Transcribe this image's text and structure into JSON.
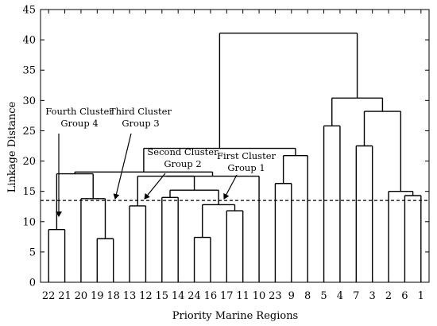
{
  "chart_data": {
    "type": "dendrogram",
    "xlabel": "Priority Marine Regions",
    "ylabel": "Linkage Distance",
    "ylim": [
      0,
      45
    ],
    "yticks": [
      0,
      5,
      10,
      15,
      20,
      25,
      30,
      35,
      40,
      45
    ],
    "leaves": [
      "22",
      "21",
      "20",
      "19",
      "18",
      "13",
      "12",
      "15",
      "14",
      "24",
      "16",
      "17",
      "11",
      "10",
      "23",
      "9",
      "8",
      "5",
      "4",
      "7",
      "3",
      "2",
      "6",
      "1"
    ],
    "merges": [
      {
        "children": [
          "22",
          "21"
        ],
        "height": 8.7
      },
      {
        "children": [
          "19",
          "18"
        ],
        "height": 7.2
      },
      {
        "children": [
          "20",
          "19+18"
        ],
        "height": 13.8
      },
      {
        "children": [
          "22+21",
          "20+19+18"
        ],
        "height": 17.9
      },
      {
        "children": [
          "13",
          "12"
        ],
        "height": 12.6
      },
      {
        "children": [
          "15",
          "14"
        ],
        "height": 14.0
      },
      {
        "children": [
          "24",
          "16"
        ],
        "height": 7.4
      },
      {
        "children": [
          "17",
          "11"
        ],
        "height": 11.8
      },
      {
        "children": [
          "24+16",
          "17+11"
        ],
        "height": 12.8
      },
      {
        "children": [
          "15+14",
          "24+16+17+11"
        ],
        "height": 15.2
      },
      {
        "children": [
          "13+12",
          "15+14+24+16+17+11"
        ],
        "height": 17.5
      },
      {
        "children": [
          "13..11",
          "10"
        ],
        "height": 17.5
      },
      {
        "children": [
          "22..18",
          "13..10"
        ],
        "height": 18.2
      },
      {
        "children": [
          "23",
          "9"
        ],
        "height": 16.3
      },
      {
        "children": [
          "23+9",
          "8"
        ],
        "height": 20.9
      },
      {
        "children": [
          "22..10",
          "23+9+8"
        ],
        "height": 22.1
      },
      {
        "children": [
          "7",
          "3"
        ],
        "height": 22.5
      },
      {
        "children": [
          "6",
          "1"
        ],
        "height": 14.3
      },
      {
        "children": [
          "2",
          "6+1"
        ],
        "height": 15.0
      },
      {
        "children": [
          "7+3",
          "2+6+1"
        ],
        "height": 28.2
      },
      {
        "children": [
          "5",
          "4"
        ],
        "height": 25.8
      },
      {
        "children": [
          "5+4",
          "7+3+2+6+1"
        ],
        "height": 30.4
      },
      {
        "children": [
          "22..8",
          "5..1"
        ],
        "height": 41.1
      }
    ],
    "cutoff": 13.5,
    "annotations": [
      {
        "line1": "Fourth Cluster",
        "line2": "Group 4"
      },
      {
        "line1": "Third Cluster",
        "line2": "Group 3"
      },
      {
        "line1": "Second Cluster",
        "line2": "Group 2"
      },
      {
        "line1": "First Cluster",
        "line2": "Group 1"
      }
    ],
    "grid": false,
    "line_color": "#000000"
  }
}
